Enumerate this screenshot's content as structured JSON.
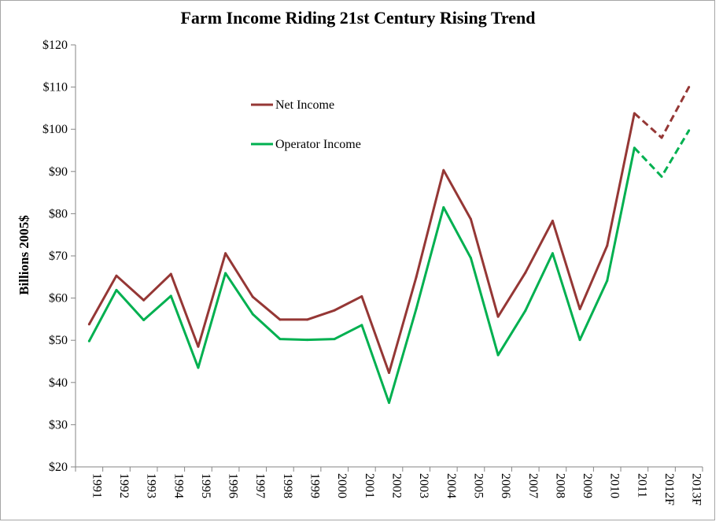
{
  "chart_data": {
    "type": "line",
    "title": "Farm Income Riding 21st Century Rising Trend",
    "xlabel": "",
    "ylabel": "Billions 2005$",
    "ylim": [
      20,
      120
    ],
    "ytick_values": [
      20,
      30,
      40,
      50,
      60,
      70,
      80,
      90,
      100,
      110,
      120
    ],
    "ytick_labels": [
      "$20",
      "$30",
      "$40",
      "$50",
      "$60",
      "$70",
      "$80",
      "$90",
      "$100",
      "$110",
      "$120"
    ],
    "categories": [
      "1991",
      "1992",
      "1993",
      "1994",
      "1995",
      "1996",
      "1997",
      "1998",
      "1999",
      "2000",
      "2001",
      "2002",
      "2003",
      "2004",
      "2005",
      "2006",
      "2007",
      "2008",
      "2009",
      "2010",
      "2011",
      "2012F",
      "2013F"
    ],
    "grid": false,
    "legend_position": "upper-left-center",
    "forecast_start_index": 20,
    "series": [
      {
        "name": "Net Income",
        "color": "#953735",
        "values": [
          53.8,
          65.3,
          59.5,
          65.7,
          48.5,
          70.6,
          60.3,
          54.9,
          54.9,
          57.1,
          60.4,
          42.3,
          65.0,
          90.3,
          78.7,
          55.6,
          66.0,
          78.3,
          57.4,
          72.4,
          103.8,
          98.0,
          110.0
        ]
      },
      {
        "name": "Operator Income",
        "color": "#00b050",
        "values": [
          49.8,
          61.9,
          54.8,
          60.5,
          43.5,
          65.9,
          56.2,
          50.3,
          50.1,
          50.3,
          53.6,
          35.2,
          57.5,
          81.5,
          69.5,
          46.5,
          57.0,
          70.6,
          50.1,
          64.1,
          95.6,
          88.8,
          99.7
        ]
      }
    ]
  }
}
